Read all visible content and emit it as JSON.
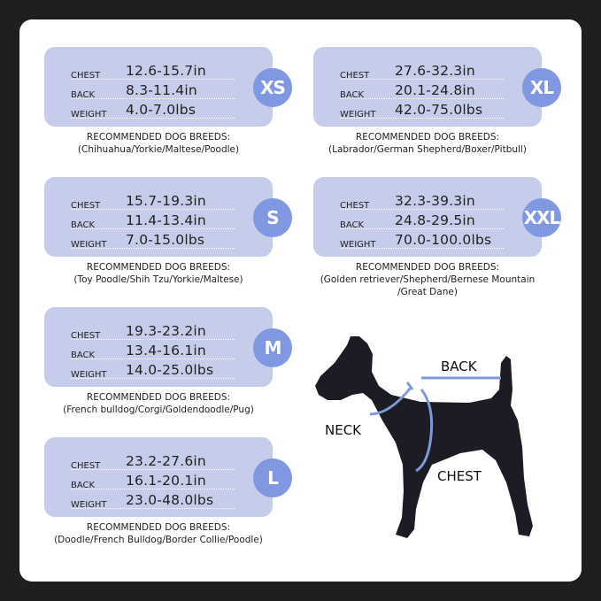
{
  "labels": {
    "chest": "CHEST",
    "back": "BACK",
    "weight": "WEIGHT",
    "recommended": "RECOMMENDED DOG BREEDS:"
  },
  "sizes": [
    {
      "size": "XS",
      "chest": "12.6-15.7in",
      "back": "8.3-11.4in",
      "weight": "4.0-7.0lbs",
      "breeds": "(Chihuahua/Yorkie/Maltese/Poodle)"
    },
    {
      "size": "S",
      "chest": "15.7-19.3in",
      "back": "11.4-13.4in",
      "weight": "7.0-15.0lbs",
      "breeds": "(Toy Poodle/Shih Tzu/Yorkie/Maltese)"
    },
    {
      "size": "M",
      "chest": "19.3-23.2in",
      "back": "13.4-16.1in",
      "weight": "14.0-25.0lbs",
      "breeds": "(French bulldog/Corgi/Goldendoodle/Pug)"
    },
    {
      "size": "L",
      "chest": "23.2-27.6in",
      "back": "16.1-20.1in",
      "weight": "23.0-48.0lbs",
      "breeds": "(Doodle/French Bulldog/Border Collie/Poodle)"
    },
    {
      "size": "XL",
      "chest": "27.6-32.3in",
      "back": "20.1-24.8in",
      "weight": "42.0-75.0lbs",
      "breeds": "(Labrador/German Shepherd/Boxer/Pitbull)"
    },
    {
      "size": "XXL",
      "chest": "32.3-39.3in",
      "back": "24.8-29.5in",
      "weight": "70.0-100.0lbs",
      "breeds": "(Golden retriever/Shepherd/Bernese Mountain /Great Dane)"
    }
  ],
  "diagram": {
    "back": "BACK",
    "neck": "NECK",
    "chest": "CHEST"
  },
  "colors": {
    "card": "#c5cdea",
    "badge": "#8098e2",
    "measure_line": "#8098d8",
    "dog": "#1c1c24"
  }
}
